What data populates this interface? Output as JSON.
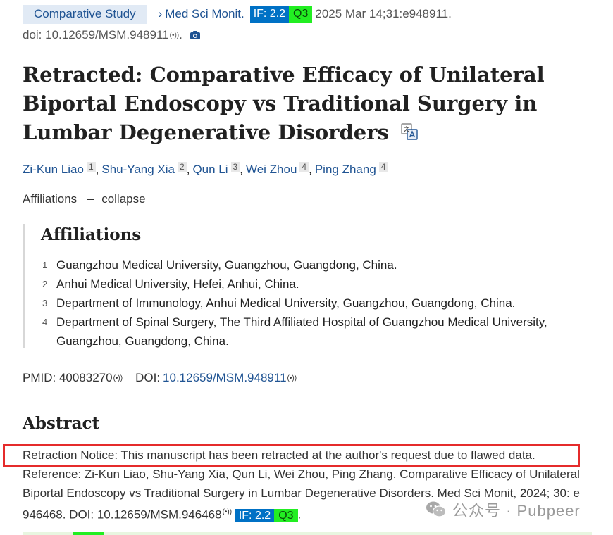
{
  "header": {
    "article_type": "Comparative Study",
    "chevron": "›",
    "journal": "Med Sci Monit.",
    "impact_factor": "IF: 2.2",
    "quartile": "Q3",
    "citation": "2025 Mar 14;31:e948911."
  },
  "doi_line": {
    "text": "doi: 10.12659/MSM.948911",
    "signal_glyph": "(•))",
    "icon": "camera-icon"
  },
  "title": "Retracted: Comparative Efficacy of Unilateral Biportal Endoscopy vs Traditional Surgery in Lumbar Degenerative Disorders",
  "authors": [
    {
      "name": "Zi-Kun Liao",
      "aff": "1"
    },
    {
      "name": "Shu-Yang Xia",
      "aff": "2"
    },
    {
      "name": "Qun Li",
      "aff": "3"
    },
    {
      "name": "Wei Zhou",
      "aff": "4"
    },
    {
      "name": "Ping Zhang",
      "aff": "4"
    }
  ],
  "affiliations_toggle": {
    "label": "Affiliations",
    "action": "collapse"
  },
  "affiliations": {
    "heading": "Affiliations",
    "items": [
      {
        "n": "1",
        "text": "Guangzhou Medical University, Guangzhou, Guangdong, China."
      },
      {
        "n": "2",
        "text": "Anhui Medical University, Hefei, Anhui, China."
      },
      {
        "n": "3",
        "text": "Department of Immunology, Anhui Medical University, Guangzhou, Guangdong, China."
      },
      {
        "n": "4",
        "text": "Department of Spinal Surgery, The Third Affiliated Hospital of Guangzhou Medical University, Guangzhou, Guangdong, China."
      }
    ]
  },
  "ids": {
    "pmid": "PMID: 40083270",
    "doi_label": "DOI:",
    "doi_value": "10.12659/MSM.948911"
  },
  "abstract": {
    "heading": "Abstract",
    "retraction_notice": "Retraction Notice: This manuscript has been retracted at the author's request due to flawed data.",
    "reference": "Reference: Zi-Kun Liao, Shu-Yang Xia, Qun Li, Wei Zhou, Ping Zhang. Comparative Efficacy of Unilateral Biportal Endoscopy vs Traditional Surgery in Lumbar Degenerative Disorders. Med Sci Monit, 2024; 30: e 946468. DOI: 10.12659/MSM.946468",
    "ref_if": "IF: 2.2",
    "ref_quartile": "Q3",
    "ref_end": "."
  },
  "watermark": {
    "text": "公众号 · Pubpeer",
    "icon": "wechat-icon"
  },
  "colors": {
    "link": "#205493",
    "if_badge": "#0071c5",
    "quartile_badge": "#22ee22",
    "highlight_box": "#e52b2b"
  }
}
